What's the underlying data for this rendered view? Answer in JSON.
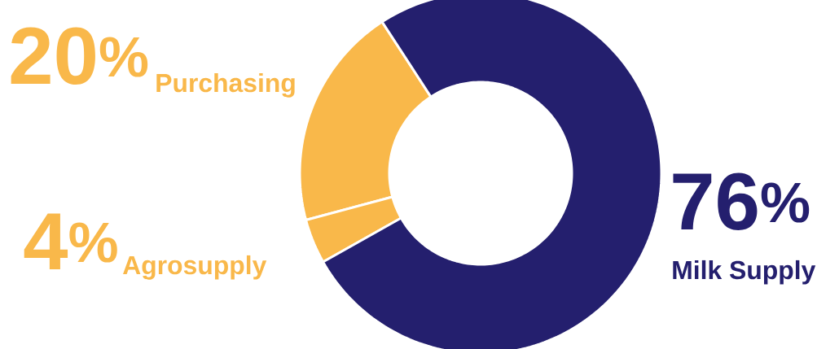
{
  "chart_data": {
    "type": "donut",
    "categories": [
      "Purchasing",
      "Agrosupply",
      "Milk Supply"
    ],
    "values": [
      20,
      4,
      76
    ],
    "colors": [
      "#f9b84a",
      "#f9b84a",
      "#241f6e"
    ],
    "value_labels": [
      "20$^{%}$",
      "4$^{%}$",
      "76$^{%}$"
    ]
  }
}
